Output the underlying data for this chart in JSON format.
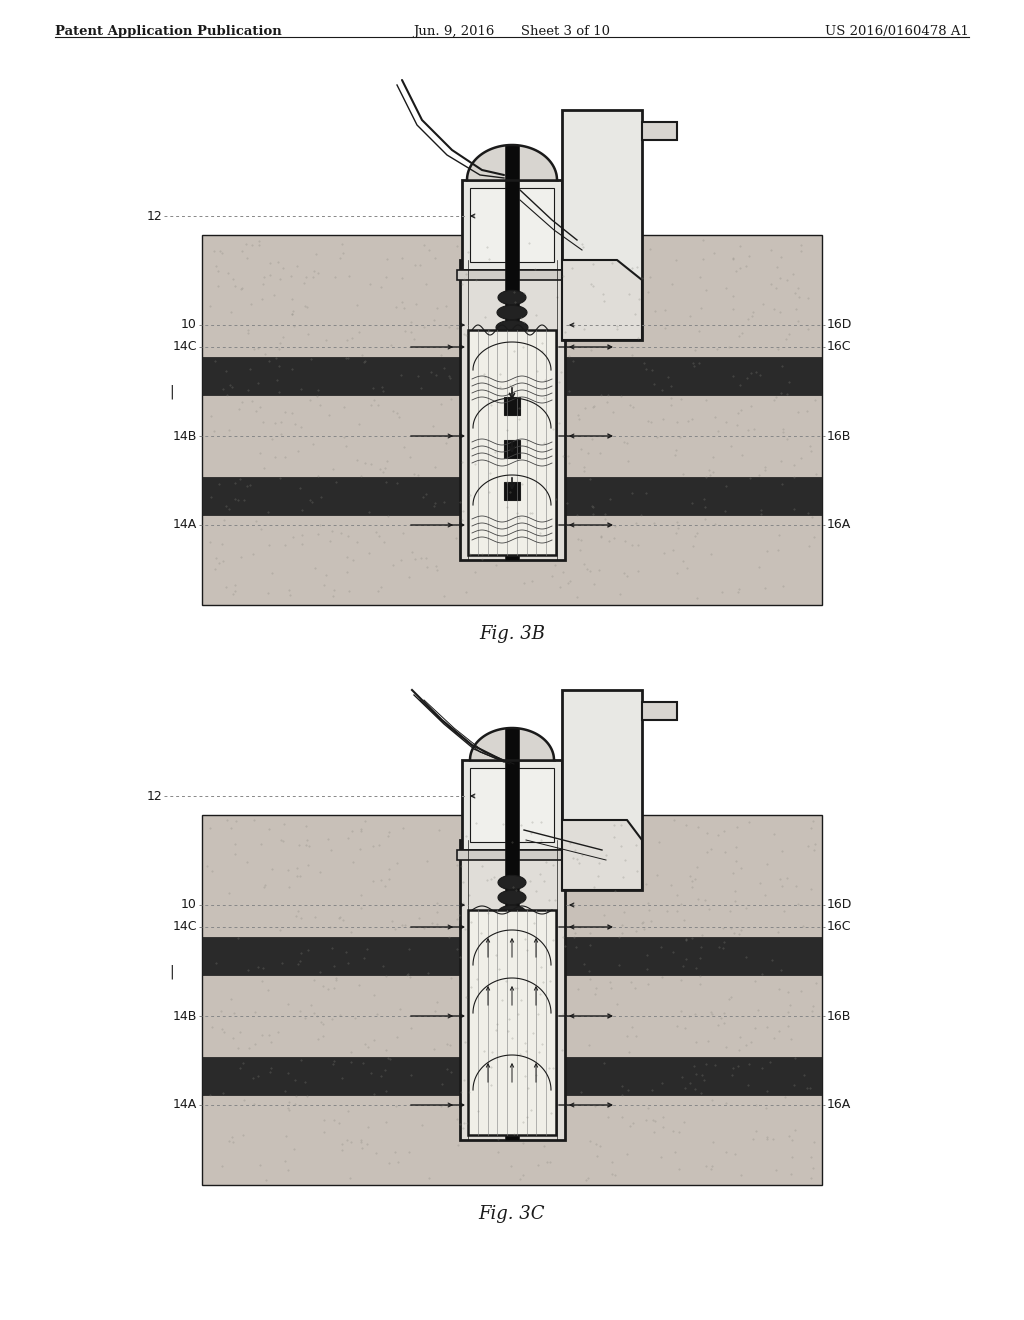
{
  "title_left": "Patent Application Publication",
  "title_center": "Jun. 9, 2016  Sheet 3 of 10",
  "title_right": "US 2016/0160478 A1",
  "fig3b_label": "Fig. 3B",
  "fig3c_label": "Fig. 3C",
  "bg_color": "#ffffff",
  "dark_color": "#1a1a1a",
  "sand_color": "#c8c0b8",
  "sand_color2": "#d0c8c0",
  "rock_color": "#2a2a2a",
  "casing_fill": "#e8e8e4",
  "screen_fill": "#f4f4f0",
  "bellows_color": "#333333",
  "dot_gray": "#999999",
  "rod_color": "#111111"
}
